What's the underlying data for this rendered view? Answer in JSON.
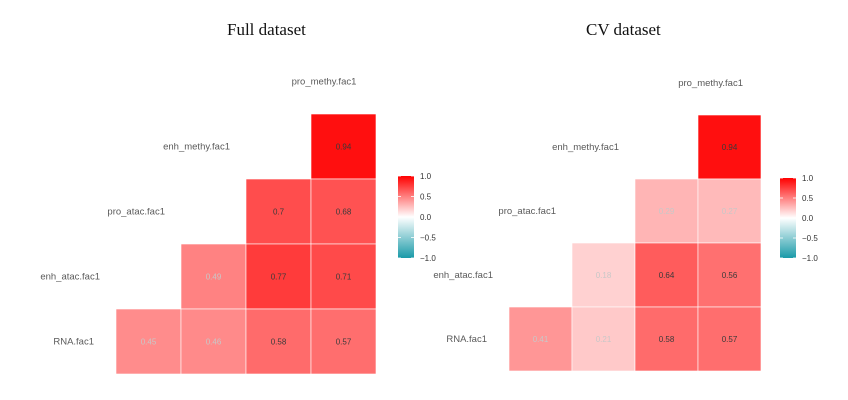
{
  "chart_data": [
    {
      "type": "heatmap",
      "title": "Full dataset",
      "variables": [
        "RNA.fac1",
        "enh_atac.fac1",
        "pro_atac.fac1",
        "enh_methy.fac1",
        "pro_methy.fac1"
      ],
      "cells": [
        {
          "row": "enh_methy.fac1",
          "col": "pro_methy.fac1",
          "value": 0.94
        },
        {
          "row": "pro_atac.fac1",
          "col": "enh_methy.fac1",
          "value": 0.7
        },
        {
          "row": "pro_atac.fac1",
          "col": "pro_methy.fac1",
          "value": 0.68
        },
        {
          "row": "enh_atac.fac1",
          "col": "pro_atac.fac1",
          "value": 0.49
        },
        {
          "row": "enh_atac.fac1",
          "col": "enh_methy.fac1",
          "value": 0.77
        },
        {
          "row": "enh_atac.fac1",
          "col": "pro_methy.fac1",
          "value": 0.71
        },
        {
          "row": "RNA.fac1",
          "col": "enh_atac.fac1",
          "value": 0.45
        },
        {
          "row": "RNA.fac1",
          "col": "pro_atac.fac1",
          "value": 0.46
        },
        {
          "row": "RNA.fac1",
          "col": "enh_methy.fac1",
          "value": 0.58
        },
        {
          "row": "RNA.fac1",
          "col": "pro_methy.fac1",
          "value": 0.57
        }
      ],
      "color_scale": {
        "min": -1.0,
        "max": 1.0,
        "low": "#1a9aa8",
        "mid": "#ffffff",
        "high": "#ff0000"
      },
      "colorbar_ticks": [
        "1.0",
        "0.5",
        "0.0",
        "−0.5",
        "−1.0"
      ],
      "legend": "right"
    },
    {
      "type": "heatmap",
      "title": "CV dataset",
      "variables": [
        "RNA.fac1",
        "enh_atac.fac1",
        "pro_atac.fac1",
        "enh_methy.fac1",
        "pro_methy.fac1"
      ],
      "cells": [
        {
          "row": "enh_methy.fac1",
          "col": "pro_methy.fac1",
          "value": 0.94
        },
        {
          "row": "pro_atac.fac1",
          "col": "enh_methy.fac1",
          "value": 0.29
        },
        {
          "row": "pro_atac.fac1",
          "col": "pro_methy.fac1",
          "value": 0.27
        },
        {
          "row": "enh_atac.fac1",
          "col": "pro_atac.fac1",
          "value": 0.18
        },
        {
          "row": "enh_atac.fac1",
          "col": "enh_methy.fac1",
          "value": 0.64
        },
        {
          "row": "enh_atac.fac1",
          "col": "pro_methy.fac1",
          "value": 0.56
        },
        {
          "row": "RNA.fac1",
          "col": "enh_atac.fac1",
          "value": 0.41
        },
        {
          "row": "RNA.fac1",
          "col": "pro_atac.fac1",
          "value": 0.21
        },
        {
          "row": "RNA.fac1",
          "col": "enh_methy.fac1",
          "value": 0.58
        },
        {
          "row": "RNA.fac1",
          "col": "pro_methy.fac1",
          "value": 0.57
        }
      ],
      "color_scale": {
        "min": -1.0,
        "max": 1.0,
        "low": "#1a9aa8",
        "mid": "#ffffff",
        "high": "#ff0000"
      },
      "colorbar_ticks": [
        "1.0",
        "0.5",
        "0.0",
        "−0.5",
        "−1.0"
      ],
      "legend": "right"
    }
  ]
}
